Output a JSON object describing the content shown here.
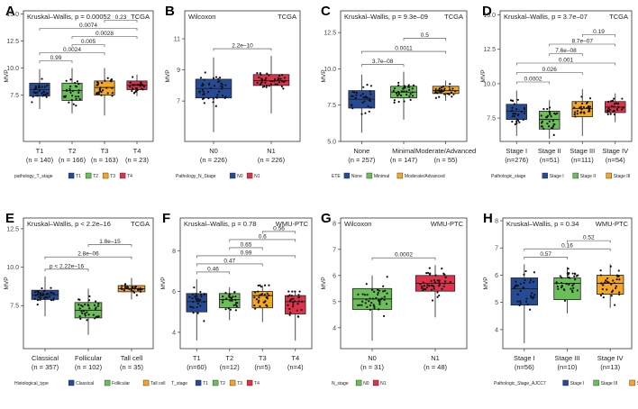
{
  "chart_data": [
    {
      "panel": "A",
      "type": "boxplot",
      "test": "Kruskal–Wallis, p = 0.00052",
      "dataset": "TCGA",
      "ylabel": "MVP",
      "ylim": [
        3.2,
        15.3
      ],
      "yticks": [
        "7.5",
        "10.0",
        "12.5",
        "15.0"
      ],
      "ytick_values": [
        7.5,
        10,
        12.5,
        15
      ],
      "categories": [
        "T1",
        "T2",
        "T3",
        "T4"
      ],
      "ns": [
        "(n = 140)",
        "(n = 166)",
        "(n = 163)",
        "(n = 23)"
      ],
      "boxes": [
        [
          6.2,
          7.4,
          8.0,
          8.6,
          9.9
        ],
        [
          5.8,
          7.0,
          7.9,
          8.6,
          10.0
        ],
        [
          5.6,
          7.5,
          8.2,
          8.8,
          10.0
        ],
        [
          7.4,
          8.0,
          8.4,
          8.8,
          9.4
        ]
      ],
      "colors": [
        "#264b96",
        "#6bbf59",
        "#f5a623",
        "#e0314b"
      ],
      "legend_title": "pathology_T_stage",
      "legend": [
        "T1",
        "T2",
        "T3",
        "T4"
      ],
      "brackets": [
        {
          "a": 0,
          "b": 1,
          "label": "0.99"
        },
        {
          "a": 0,
          "b": 2,
          "label": "0.0024"
        },
        {
          "a": 1,
          "b": 2,
          "label": "0.005"
        },
        {
          "a": 1,
          "b": 3,
          "label": "0.0028"
        },
        {
          "a": 0,
          "b": 3,
          "label": "0.0074"
        },
        {
          "a": 2,
          "b": 3,
          "label": "0.23"
        }
      ],
      "ptsOuter": [
        [
          3.8,
          12.5
        ],
        [
          4.0,
          11.2
        ],
        [
          4.2,
          11.0
        ],
        [
          7.4,
          9.4
        ]
      ]
    },
    {
      "panel": "B",
      "type": "boxplot",
      "test": "Wilcoxon",
      "dataset": "TCGA",
      "ylabel": "MVP",
      "ylim": [
        4.4,
        12.8
      ],
      "yticks": [
        "7",
        "9",
        "11"
      ],
      "ytick_values": [
        7,
        9,
        11
      ],
      "categories": [
        "N0",
        "N1"
      ],
      "ns": [
        "(n = 226)",
        "(n = 226)"
      ],
      "boxes": [
        [
          5.0,
          7.2,
          7.8,
          8.4,
          9.8
        ],
        [
          6.2,
          8.0,
          8.3,
          8.7,
          9.9
        ]
      ],
      "colors": [
        "#264b96",
        "#e0314b"
      ],
      "legend_title": "Pathology_N_Stage",
      "legend": [
        "N0",
        "N1"
      ],
      "brackets": [
        {
          "a": 0,
          "b": 1,
          "label": "2.2e–10"
        }
      ],
      "ptsOuter": [
        [
          4.5,
          10.8
        ],
        [
          5.8,
          10.9
        ]
      ]
    },
    {
      "panel": "C",
      "type": "boxplot",
      "test": "Kruskal–Wallis, p = 9.3e–09",
      "dataset": "TCGA",
      "ylabel": "MVP",
      "ylim": [
        5.0,
        14.0
      ],
      "yticks": [
        "5.0",
        "7.5",
        "10.0",
        "12.5"
      ],
      "ytick_values": [
        5,
        7.5,
        10,
        12.5
      ],
      "categories": [
        "None",
        "Minimal",
        "Moderate/Advanced"
      ],
      "ns": [
        "(n = 257)",
        "(n = 147)",
        "(n = 55)"
      ],
      "boxes": [
        [
          5.6,
          7.3,
          7.9,
          8.5,
          9.6
        ],
        [
          6.5,
          8.0,
          8.4,
          8.8,
          9.8
        ],
        [
          7.8,
          8.3,
          8.5,
          8.8,
          9.2
        ]
      ],
      "colors": [
        "#264b96",
        "#6bbf59",
        "#f5a623"
      ],
      "legend_title": "ETE",
      "legend": [
        "None",
        "Minimal",
        "Moderate/Advanced"
      ],
      "brackets": [
        {
          "a": 0,
          "b": 1,
          "label": "3.7e–08"
        },
        {
          "a": 0,
          "b": 2,
          "label": "0.0011"
        },
        {
          "a": 1,
          "b": 2,
          "label": "0.5"
        }
      ],
      "ptsOuter": [
        [
          5.3,
          10.2
        ],
        [
          6.1,
          10.1
        ]
      ]
    },
    {
      "panel": "D",
      "type": "boxplot",
      "test": "Kruskal–Wallis, p = 3.7e–07",
      "dataset": "TCGA",
      "ylabel": "MVP",
      "ylim": [
        5.8,
        15.3
      ],
      "yticks": [
        "7.5",
        "10.0",
        "12.5",
        "15.0"
      ],
      "ytick_values": [
        7.5,
        10,
        12.5,
        15
      ],
      "categories": [
        "Stage I",
        "Stage II",
        "Stage III",
        "Stage IV"
      ],
      "ns": [
        "(n=276)",
        "(n=51)",
        "(n=111)",
        "(n=54)"
      ],
      "boxes": [
        [
          6.2,
          7.4,
          8.0,
          8.5,
          9.5
        ],
        [
          6.0,
          6.7,
          7.4,
          8.0,
          8.8
        ],
        [
          6.2,
          7.6,
          8.2,
          8.7,
          9.6
        ],
        [
          7.2,
          7.9,
          8.3,
          8.7,
          9.3
        ]
      ],
      "colors": [
        "#264b96",
        "#6bbf59",
        "#f5a623",
        "#e0314b"
      ],
      "legend_title": "Pathologic_stage",
      "legend": [
        "Stage I",
        "Stage II",
        "Stage III",
        "Stage IV"
      ],
      "brackets": [
        {
          "a": 0,
          "b": 1,
          "label": "0.0002"
        },
        {
          "a": 0,
          "b": 2,
          "label": "0.026"
        },
        {
          "a": 0,
          "b": 3,
          "label": "0.001"
        },
        {
          "a": 1,
          "b": 2,
          "label": "7.6e–08"
        },
        {
          "a": 1,
          "b": 3,
          "label": "8.7e–07"
        },
        {
          "a": 2,
          "b": 3,
          "label": "0.19"
        }
      ],
      "ptsOuter": [
        [
          6.0,
          9.6
        ]
      ]
    },
    {
      "panel": "E",
      "type": "boxplot",
      "test": "Kruskal–Wallis, p < 2.2e–16",
      "dataset": "TCGA",
      "ylabel": "MVP",
      "ylim": [
        4.7,
        13.2
      ],
      "yticks": [
        "7.5",
        "10.0",
        "12.5"
      ],
      "ytick_values": [
        7.5,
        10,
        12.5
      ],
      "categories": [
        "Classical",
        "Follicular",
        "Tall cell"
      ],
      "ns": [
        "(n = 357)",
        "(n = 102)",
        "(n = 35)"
      ],
      "boxes": [
        [
          6.8,
          7.9,
          8.2,
          8.5,
          9.4
        ],
        [
          5.6,
          6.7,
          7.2,
          7.7,
          8.6
        ],
        [
          7.9,
          8.4,
          8.6,
          8.8,
          9.3
        ]
      ],
      "colors": [
        "#264b96",
        "#6bbf59",
        "#f5a623"
      ],
      "legend_title": "Histological_type",
      "legend": [
        "Classical",
        "Follicular",
        "Tall cell"
      ],
      "brackets": [
        {
          "a": 0,
          "b": 1,
          "label": "p < 2.22e–16"
        },
        {
          "a": 0,
          "b": 2,
          "label": "2.8e–06"
        },
        {
          "a": 1,
          "b": 2,
          "label": "1.8e–15"
        }
      ],
      "ptsOuter": [
        [
          5.0,
          9.6
        ]
      ]
    },
    {
      "panel": "F",
      "type": "boxplot",
      "test": "Kruskal–Wallis, p = 0.78",
      "dataset": "WMU-PTC",
      "ylabel": "MVP",
      "ylim": [
        3.2,
        9.6
      ],
      "yticks": [
        "4",
        "6",
        "8"
      ],
      "ytick_values": [
        4,
        6,
        8
      ],
      "categories": [
        "T1",
        "T2",
        "T3",
        "T4"
      ],
      "ns": [
        "(n=60)",
        "(n=12)",
        "(n=5)",
        "(n=4)"
      ],
      "boxes": [
        [
          3.6,
          5.0,
          5.5,
          5.9,
          6.6
        ],
        [
          4.6,
          5.2,
          5.6,
          5.9,
          6.2
        ],
        [
          4.5,
          5.2,
          5.8,
          6.0,
          6.3
        ],
        [
          3.6,
          4.9,
          5.5,
          5.8,
          6.0
        ]
      ],
      "colors": [
        "#264b96",
        "#6bbf59",
        "#f5a623",
        "#e0314b"
      ],
      "legend_title": "T_stage",
      "legend": [
        "T1",
        "T2",
        "T3",
        "T4"
      ],
      "brackets": [
        {
          "a": 0,
          "b": 1,
          "label": "0.46"
        },
        {
          "a": 0,
          "b": 2,
          "label": "0.47"
        },
        {
          "a": 0,
          "b": 3,
          "label": "0.99"
        },
        {
          "a": 1,
          "b": 2,
          "label": "0.65"
        },
        {
          "a": 1,
          "b": 3,
          "label": "0.6"
        },
        {
          "a": 2,
          "b": 3,
          "label": "0.56"
        }
      ],
      "ptsOuter": [
        [
          3.5,
          6.6
        ]
      ]
    },
    {
      "panel": "G",
      "type": "boxplot",
      "test": "Wilcoxon",
      "dataset": "WMU-PTC",
      "ylabel": "MVP",
      "ylim": [
        3.2,
        8.2
      ],
      "yticks": [
        "4",
        "5",
        "6",
        "7",
        "8"
      ],
      "ytick_values": [
        4,
        5,
        6,
        7,
        8
      ],
      "categories": [
        "N0",
        "N1"
      ],
      "ns": [
        "(n = 31)",
        "(n = 48)"
      ],
      "boxes": [
        [
          3.5,
          4.7,
          5.1,
          5.5,
          6.0
        ],
        [
          4.4,
          5.4,
          5.7,
          6.0,
          6.4
        ]
      ],
      "colors": [
        "#6bbf59",
        "#e0314b"
      ],
      "legend_title": "N_stage",
      "legend": [
        "N0",
        "N1"
      ],
      "brackets": [
        {
          "a": 0,
          "b": 1,
          "label": "0.0002"
        }
      ],
      "ptsOuter": [
        [
          3.5,
          6.4
        ]
      ]
    },
    {
      "panel": "H",
      "type": "boxplot",
      "test": "Kruskal–Wallis, p = 0.34",
      "dataset": "WMU-PTC",
      "ylabel": "MVP",
      "ylim": [
        3.3,
        8.1
      ],
      "yticks": [
        "4",
        "5",
        "6",
        "7",
        "8"
      ],
      "ytick_values": [
        4,
        5,
        6,
        7,
        8
      ],
      "categories": [
        "Stage I",
        "Stage III",
        "Stage IV"
      ],
      "ns": [
        "(n=56)",
        "(n=10)",
        "(n=13)"
      ],
      "boxes": [
        [
          3.5,
          4.9,
          5.5,
          5.9,
          6.4
        ],
        [
          4.6,
          5.1,
          5.7,
          5.9,
          6.3
        ],
        [
          4.8,
          5.3,
          5.7,
          6.0,
          6.4
        ]
      ],
      "colors": [
        "#264b96",
        "#6bbf59",
        "#f5a623"
      ],
      "legend_title": "Pathologic_Stage_AJCC7",
      "legend": [
        "Stage I",
        "Stage III",
        "Stage IV"
      ],
      "brackets": [
        {
          "a": 0,
          "b": 1,
          "label": "0.57"
        },
        {
          "a": 0,
          "b": 2,
          "label": "0.16"
        },
        {
          "a": 1,
          "b": 2,
          "label": "0.52"
        }
      ],
      "ptsOuter": [
        [
          3.5,
          6.4
        ]
      ]
    }
  ]
}
